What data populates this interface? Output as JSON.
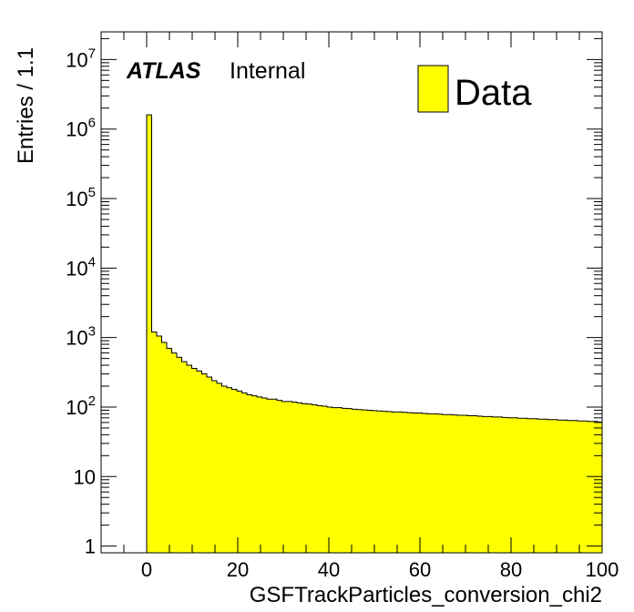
{
  "chart_data": {
    "type": "bar",
    "subtype": "histogram",
    "xlabel": "GSFTrackParticles_conversion_chi2",
    "ylabel": "Entries / 1.1",
    "xlim": [
      -10,
      100
    ],
    "ylim": [
      0.8,
      25000000
    ],
    "yscale": "log",
    "bin_width": 1.1,
    "x_ticks": [
      "0",
      "20",
      "40",
      "60",
      "80",
      "100"
    ],
    "y_ticks": [
      {
        "value": 1,
        "base": "1",
        "exp": ""
      },
      {
        "value": 10,
        "base": "10",
        "exp": ""
      },
      {
        "value": 100,
        "base": "10",
        "exp": "2"
      },
      {
        "value": 1000,
        "base": "10",
        "exp": "3"
      },
      {
        "value": 10000,
        "base": "10",
        "exp": "4"
      },
      {
        "value": 100000,
        "base": "10",
        "exp": "5"
      },
      {
        "value": 1000000,
        "base": "10",
        "exp": "6"
      },
      {
        "value": 10000000,
        "base": "10",
        "exp": "7"
      }
    ],
    "fill_color": "#ffff00",
    "line_color": "#000000",
    "legend": {
      "position": "top-right",
      "entries": [
        "Data"
      ]
    },
    "annotation": {
      "bold_italic": "ATLAS",
      "normal": "Internal"
    },
    "series": [
      {
        "name": "Data",
        "bin_start": 0.0,
        "values": [
          1600000,
          1200,
          1050,
          850,
          700,
          600,
          520,
          450,
          400,
          360,
          330,
          300,
          270,
          240,
          220,
          200,
          190,
          180,
          170,
          160,
          150,
          145,
          140,
          135,
          130,
          130,
          125,
          120,
          120,
          118,
          115,
          112,
          110,
          108,
          105,
          103,
          100,
          98,
          98,
          96,
          95,
          93,
          92,
          91,
          90,
          89,
          88,
          87,
          86,
          85,
          85,
          84,
          83,
          82,
          82,
          81,
          80,
          80,
          79,
          78,
          78,
          77,
          76,
          76,
          75,
          75,
          74,
          73,
          73,
          72,
          72,
          71,
          70,
          70,
          69,
          69,
          68,
          68,
          67,
          67,
          66,
          66,
          65,
          65,
          64,
          64,
          63,
          63,
          62,
          62,
          61
        ]
      }
    ]
  }
}
